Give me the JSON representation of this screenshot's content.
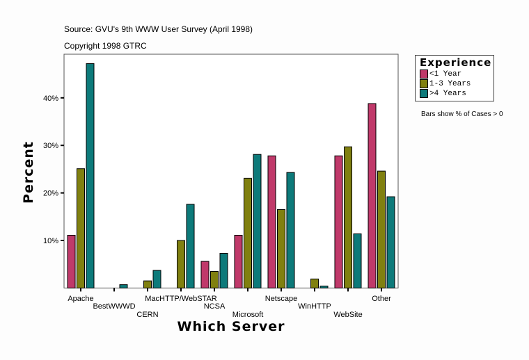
{
  "header": {
    "source": "Source: GVU's 9th WWW User Survey (April 1998)",
    "copyright": "Copyright 1998 GTRC"
  },
  "legend": {
    "title": "Experience",
    "items": [
      "<1 Year",
      "1-3 Years",
      ">4 Years"
    ]
  },
  "note": "Bars show % of Cases > 0",
  "chart_data": {
    "type": "bar",
    "xlabel": "Which Server",
    "ylabel": "Percent",
    "ylim": [
      0,
      50
    ],
    "yticks": [
      10,
      20,
      30,
      40
    ],
    "ytick_labels": [
      "10%",
      "20%",
      "30%",
      "40%"
    ],
    "grid": false,
    "legend_position": "right",
    "categories": [
      "Apache",
      "BestWWWD",
      "CERN",
      "MacHTTP/WebSTAR",
      "NCSA",
      "Microsoft",
      "Netscape",
      "WinHTTP",
      "WebSite",
      "Other"
    ],
    "series": [
      {
        "name": "<1 Year",
        "color": "#c0396a",
        "values": [
          11.1,
          0,
          0,
          0,
          5.6,
          11.1,
          27.8,
          0,
          27.8,
          38.8
        ]
      },
      {
        "name": "1-3 Years",
        "color": "#808010",
        "values": [
          25.1,
          0,
          1.5,
          10.0,
          3.5,
          23.1,
          16.5,
          1.9,
          29.7,
          24.6
        ]
      },
      {
        "name": ">4 Years",
        "color": "#0d7a7a",
        "values": [
          47.2,
          0.7,
          3.7,
          17.6,
          7.3,
          28.1,
          24.3,
          0.4,
          11.4,
          19.2
        ]
      }
    ]
  }
}
